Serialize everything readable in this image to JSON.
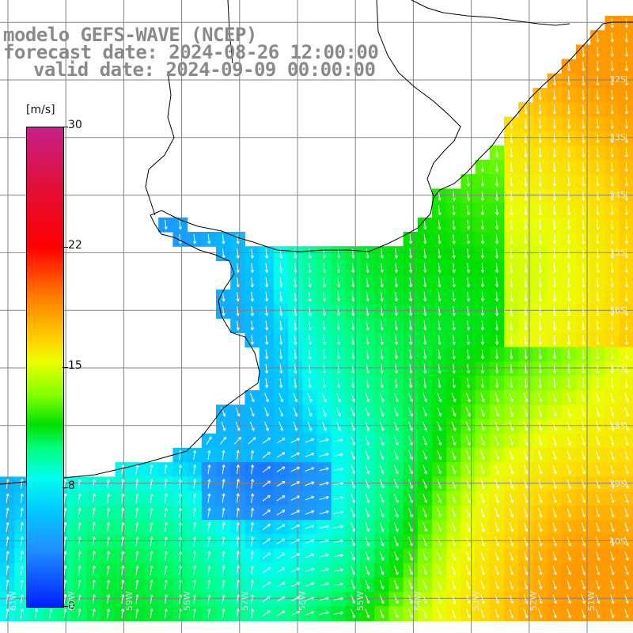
{
  "title": {
    "line1": "modelo GEFS-WAVE (NCEP)",
    "line2": "forecast date: 2024-08-26 12:00:00",
    "line3": "valid date: 2024-09-09 00:00:00"
  },
  "legend": {
    "unit": "[m/s]",
    "ticks": [
      "30",
      "22",
      "15",
      "8",
      "0"
    ],
    "colors": [
      "#0020ff",
      "#00c8ff",
      "#00ffee",
      "#00e000",
      "#eaff00",
      "#ff7a00",
      "#ff0000",
      "#c81f8a"
    ]
  },
  "map": {
    "land_color": "#ffffff",
    "grid_color": "#808080",
    "coast_color": "#000000",
    "arrow_color": "#ffffff",
    "lat_labels": [
      "32S",
      "33S",
      "34S",
      "35S",
      "36S",
      "37S",
      "38S",
      "39S",
      "40S"
    ],
    "lon_labels": [
      "61W",
      "60W",
      "59W",
      "58W",
      "57W",
      "56W",
      "55W",
      "54W",
      "53W",
      "52W",
      "51W"
    ]
  }
}
